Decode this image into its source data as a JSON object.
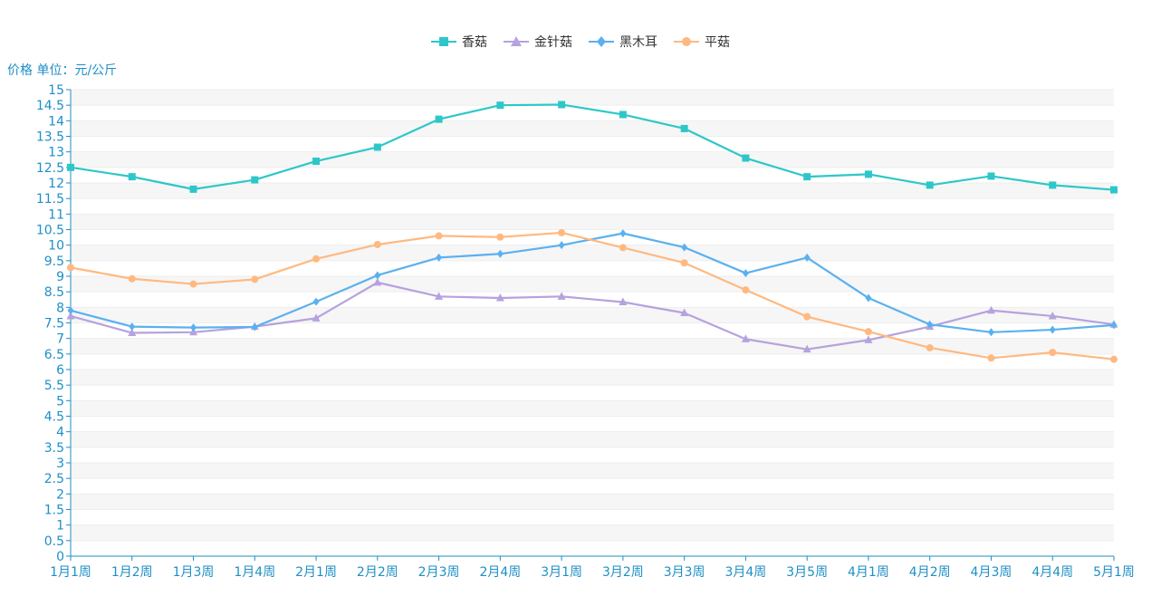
{
  "chart_data": {
    "type": "line",
    "ylabel": "价格 单位：元/公斤",
    "ylim": [
      0,
      15
    ],
    "y_tick_step": 0.5,
    "grid": "horizontal, alternating light bands",
    "legend_position": "top-center",
    "categories": [
      "1月1周",
      "1月2周",
      "1月3周",
      "1月4周",
      "2月1周",
      "2月2周",
      "2月3周",
      "2月4周",
      "3月1周",
      "3月2周",
      "3月3周",
      "3月4周",
      "3月5周",
      "4月1周",
      "4月2周",
      "4月3周",
      "4月4周",
      "5月1周"
    ],
    "series": [
      {
        "name": "香菇",
        "marker": "square",
        "color": "#2ec7c9",
        "values": [
          12.5,
          12.2,
          11.8,
          12.1,
          12.7,
          13.15,
          14.05,
          14.5,
          14.52,
          14.2,
          13.75,
          12.8,
          12.2,
          12.28,
          11.93,
          12.22,
          11.93,
          11.78
        ]
      },
      {
        "name": "金针菇",
        "marker": "triangle",
        "color": "#b6a2de",
        "values": [
          7.72,
          7.18,
          7.2,
          7.38,
          7.65,
          8.8,
          8.35,
          8.3,
          8.35,
          8.17,
          7.82,
          6.98,
          6.65,
          6.95,
          7.38,
          7.9,
          7.72,
          7.45
        ]
      },
      {
        "name": "黑木耳",
        "marker": "diamond",
        "color": "#5ab1ef",
        "values": [
          7.9,
          7.38,
          7.35,
          7.37,
          8.18,
          9.03,
          9.6,
          9.72,
          10.0,
          10.38,
          9.93,
          9.1,
          9.6,
          8.3,
          7.45,
          7.2,
          7.28,
          7.43
        ]
      },
      {
        "name": "平菇",
        "marker": "circle",
        "color": "#ffb980",
        "values": [
          9.28,
          8.92,
          8.75,
          8.9,
          9.56,
          10.02,
          10.3,
          10.26,
          10.4,
          9.92,
          9.43,
          8.56,
          7.7,
          7.22,
          6.7,
          6.37,
          6.55,
          6.33
        ]
      }
    ]
  }
}
